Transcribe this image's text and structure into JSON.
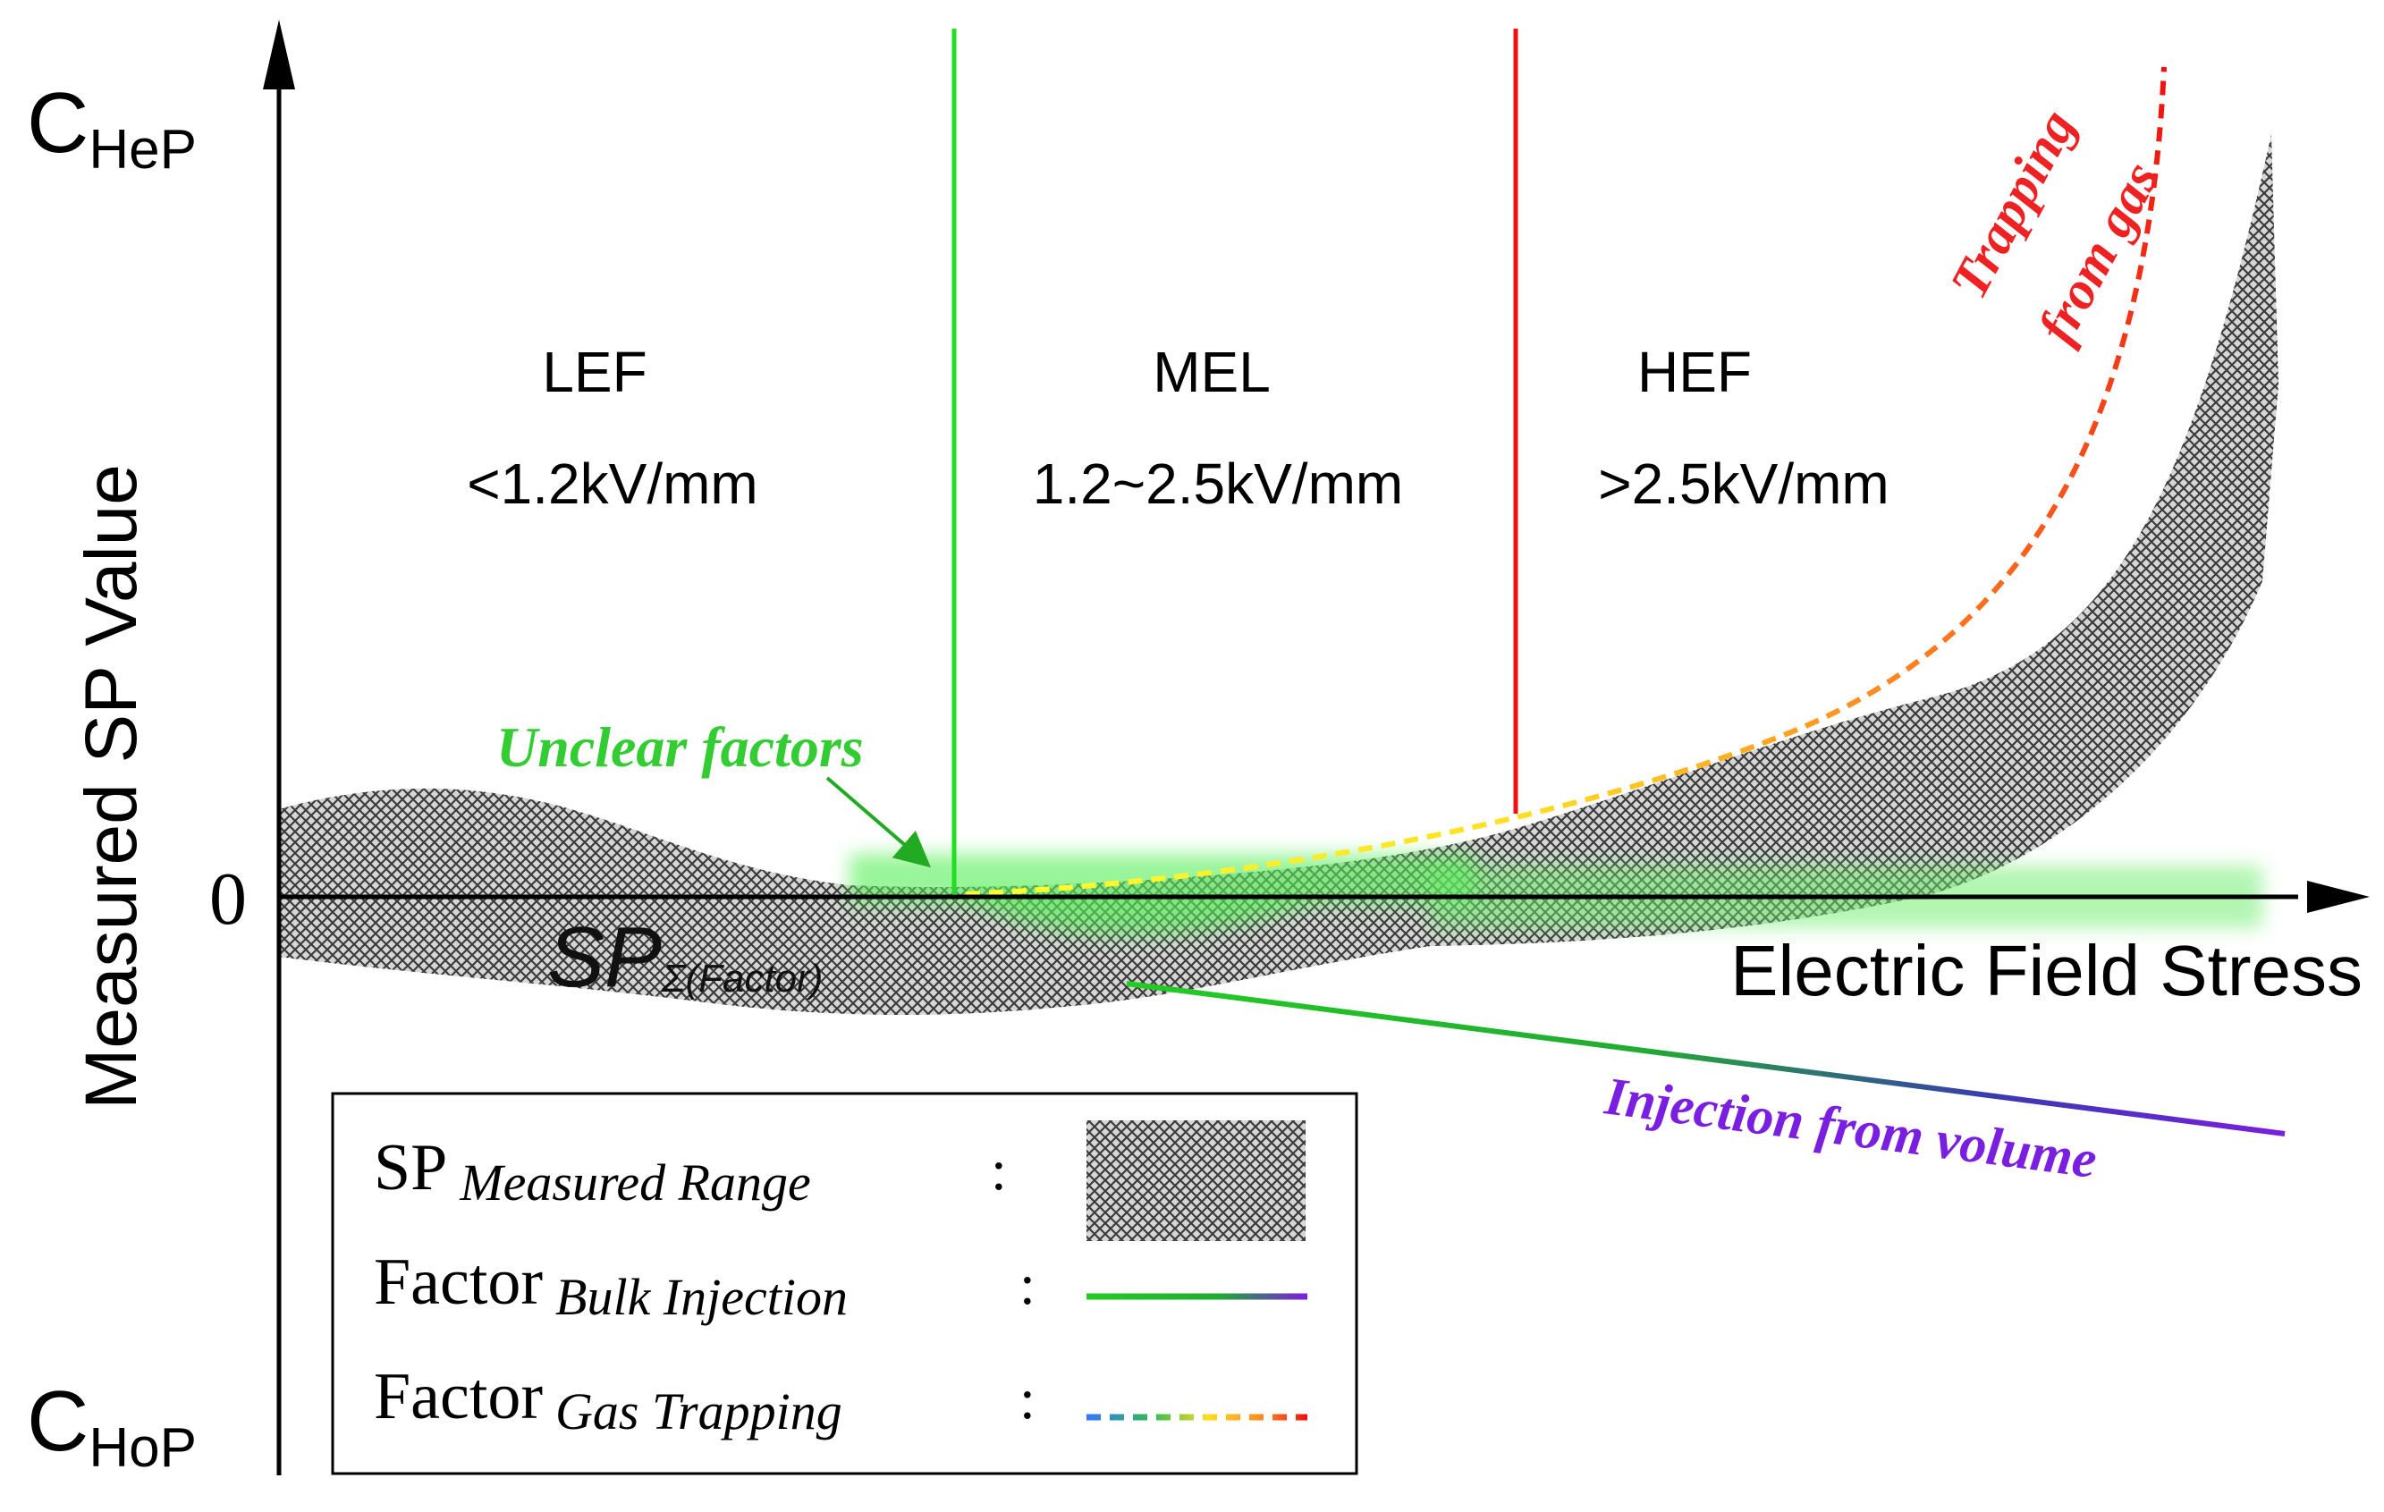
{
  "y_axis": {
    "label": "Measured SP Value",
    "top_label": {
      "main": "C",
      "sub": "HeP"
    },
    "bottom_label": {
      "main": "C",
      "sub": "HoP"
    },
    "zero_label": "0"
  },
  "x_axis": {
    "label": "Electric Field Stress"
  },
  "regions": [
    {
      "name": "LEF",
      "range": "<1.2kV/mm"
    },
    {
      "name": "MEL",
      "range": "1.2~2.5kV/mm"
    },
    {
      "name": "HEF",
      "range": ">2.5kV/mm"
    }
  ],
  "boundaries": [
    {
      "value_kv_mm": 1.2,
      "color": "#22dd22"
    },
    {
      "value_kv_mm": 2.5,
      "color": "#ee1111"
    }
  ],
  "annotations": {
    "unclear": "Unclear factors",
    "sp_main": "SP",
    "sp_sub": "Σ(Factor)",
    "injection": "Injection from volume",
    "trapping_line1": "Trapping",
    "trapping_line2": "from gas"
  },
  "legend": {
    "items": [
      {
        "main": "SP",
        "sub": "Measured Range",
        "colon": ":"
      },
      {
        "main": "Factor",
        "sub": "Bulk Injection",
        "colon": ":"
      },
      {
        "main": "Factor",
        "sub": "Gas Trapping",
        "colon": ":"
      }
    ]
  },
  "colors": {
    "lef_boundary": "#22dd22",
    "hef_boundary": "#ee1111",
    "unclear_text": "#33cc33",
    "injection_text": "#7a1ee0",
    "trapping_text": "#ee2222",
    "bulk_injection_start": "#22cc22",
    "bulk_injection_end": "#7a1ee0",
    "gas_trapping_start": "#ffee22",
    "gas_trapping_end": "#ee1111",
    "hatch": "#555555"
  }
}
